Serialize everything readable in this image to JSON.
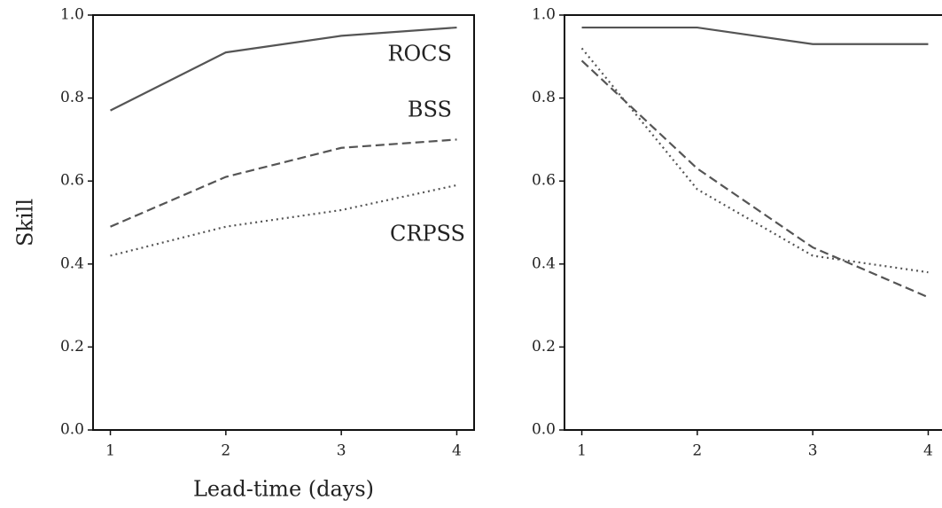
{
  "chart_data": [
    {
      "type": "line",
      "ylabel": "Skill",
      "xlabel": "Lead-time (days)",
      "x": [
        1,
        2,
        3,
        4
      ],
      "xlim": [
        0.85,
        4.15
      ],
      "xticks": [
        1,
        2,
        3,
        4
      ],
      "ylim": [
        0,
        1
      ],
      "yticks": [
        {
          "value": 0,
          "label": "0.0"
        },
        0.2,
        0.4,
        0.6,
        0.8,
        {
          "value": 1,
          "label": "1.0"
        }
      ],
      "series": [
        {
          "name": "ROCS",
          "color": "#555555",
          "dash": "solid",
          "values": [
            0.77,
            0.91,
            0.95,
            0.97
          ]
        },
        {
          "name": "BSS",
          "color": "#555555",
          "dash": "dashed",
          "values": [
            0.49,
            0.61,
            0.68,
            0.7
          ]
        },
        {
          "name": "CRPSS",
          "color": "#555555",
          "dash": "dotted",
          "values": [
            0.42,
            0.49,
            0.53,
            0.59
          ]
        }
      ]
    },
    {
      "type": "line",
      "x": [
        1,
        2,
        3,
        4
      ],
      "xlim": [
        0.85,
        4.15
      ],
      "xticks": [
        1,
        2,
        3,
        4
      ],
      "ylim": [
        0,
        1
      ],
      "yticks": [
        {
          "value": 0,
          "label": "0.0"
        },
        0.2,
        0.4,
        0.6,
        0.8,
        {
          "value": 1,
          "label": "1.0"
        }
      ],
      "series": [
        {
          "color": "#555555",
          "dash": "solid",
          "values": [
            0.97,
            0.97,
            0.93,
            0.93
          ]
        },
        {
          "color": "#555555",
          "dash": "dashed",
          "values": [
            0.89,
            0.63,
            0.44,
            0.32
          ]
        },
        {
          "color": "#555555",
          "dash": "dotted",
          "values": [
            0.92,
            0.58,
            0.42,
            0.38
          ]
        }
      ]
    }
  ]
}
